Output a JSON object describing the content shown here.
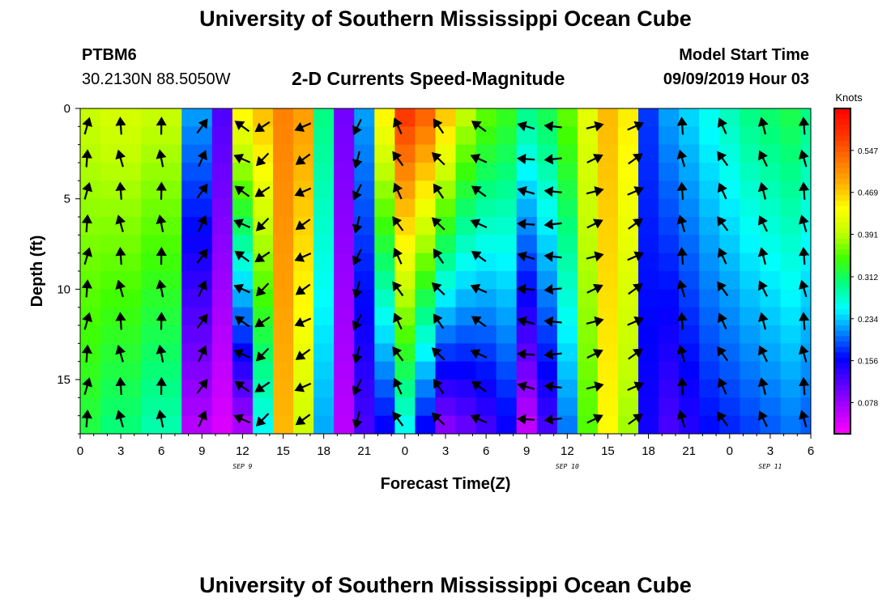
{
  "page": {
    "title_top": "University of Southern Mississippi Ocean Cube",
    "title_bottom": "University of Southern Mississippi Ocean Cube",
    "station_id": "PTBM6",
    "station_coords": "30.2130N 88.5050W",
    "subtitle": "2-D Currents Speed-Magnitude",
    "model_start_label": "Model Start Time",
    "model_start_value": "09/09/2019 Hour 03"
  },
  "chart_data": {
    "type": "heatmap",
    "title": "2-D Currents Speed-Magnitude",
    "xlabel": "Forecast Time(Z)",
    "ylabel": "Depth (ft)",
    "x_tick_labels": [
      "0",
      "3",
      "6",
      "9",
      "12",
      "15",
      "18",
      "21",
      "0",
      "3",
      "6",
      "9",
      "12",
      "15",
      "18",
      "21",
      "0",
      "3",
      "6"
    ],
    "x_range_hours": [
      0,
      54
    ],
    "date_labels": [
      {
        "text": "SEP 9",
        "hour": 12
      },
      {
        "text": "SEP 10",
        "hour": 36
      },
      {
        "text": "SEP 11",
        "hour": 51
      }
    ],
    "y_ticks": [
      0,
      5,
      10,
      15
    ],
    "ylim": [
      0,
      18
    ],
    "y_inverted": true,
    "colorbar": {
      "label": "Knots",
      "tick_labels": [
        "0.547",
        "0.469",
        "0.391",
        "0.312",
        "0.234",
        "0.156",
        "0.078"
      ],
      "tick_values": [
        0.547,
        0.469,
        0.391,
        0.312,
        0.234,
        0.156,
        0.078
      ],
      "range": [
        0.02,
        0.625
      ],
      "colors": [
        "#ff00ff",
        "#b000ff",
        "#5a00ff",
        "#0000ff",
        "#0080ff",
        "#00ffff",
        "#00ff80",
        "#40ff00",
        "#c0ff00",
        "#ffff00",
        "#ffb000",
        "#ff7000",
        "#ff3000",
        "#ff0000"
      ]
    },
    "depths_ft": [
      0,
      1,
      2,
      3,
      4,
      5,
      6,
      7,
      8,
      9,
      10,
      11,
      12,
      13,
      14,
      15,
      16,
      17,
      18
    ],
    "columns": [
      {
        "hour": 0,
        "surface": 0.4,
        "bottom": 0.32
      },
      {
        "hour": 3,
        "surface": 0.41,
        "bottom": 0.3
      },
      {
        "hour": 6,
        "surface": 0.4,
        "bottom": 0.28
      },
      {
        "hour": 9,
        "surface": 0.22,
        "bottom": 0.06
      },
      {
        "hour": 10.5,
        "surface": 0.12,
        "bottom": 0.04
      },
      {
        "hour": 12,
        "surface": 0.45,
        "bottom": 0.06
      },
      {
        "hour": 13.5,
        "surface": 0.48,
        "bottom": 0.25
      },
      {
        "hour": 15,
        "surface": 0.52,
        "bottom": 0.48
      },
      {
        "hour": 16.5,
        "surface": 0.5,
        "bottom": 0.4
      },
      {
        "hour": 18,
        "surface": 0.3,
        "bottom": 0.22
      },
      {
        "hour": 19.5,
        "surface": 0.1,
        "bottom": 0.06
      },
      {
        "hour": 21,
        "surface": 0.22,
        "bottom": 0.12
      },
      {
        "hour": 22.5,
        "surface": 0.45,
        "bottom": 0.15
      },
      {
        "hour": 24,
        "surface": 0.58,
        "bottom": 0.25
      },
      {
        "hour": 25.5,
        "surface": 0.55,
        "bottom": 0.15
      },
      {
        "hour": 27,
        "surface": 0.48,
        "bottom": 0.08
      },
      {
        "hour": 28.5,
        "surface": 0.4,
        "bottom": 0.1
      },
      {
        "hour": 30,
        "surface": 0.36,
        "bottom": 0.12
      },
      {
        "hour": 31.5,
        "surface": 0.34,
        "bottom": 0.15
      },
      {
        "hour": 33,
        "surface": 0.3,
        "bottom": 0.05
      },
      {
        "hour": 34.5,
        "surface": 0.32,
        "bottom": 0.12
      },
      {
        "hour": 36,
        "surface": 0.36,
        "bottom": 0.2
      },
      {
        "hour": 37.5,
        "surface": 0.42,
        "bottom": 0.35
      },
      {
        "hour": 39,
        "surface": 0.48,
        "bottom": 0.44
      },
      {
        "hour": 40.5,
        "surface": 0.45,
        "bottom": 0.38
      },
      {
        "hour": 42,
        "surface": 0.18,
        "bottom": 0.15
      },
      {
        "hour": 43.5,
        "surface": 0.22,
        "bottom": 0.12
      },
      {
        "hour": 45,
        "surface": 0.24,
        "bottom": 0.14
      },
      {
        "hour": 46.5,
        "surface": 0.26,
        "bottom": 0.16
      },
      {
        "hour": 48,
        "surface": 0.28,
        "bottom": 0.17
      },
      {
        "hour": 49.5,
        "surface": 0.3,
        "bottom": 0.18
      },
      {
        "hour": 51,
        "surface": 0.31,
        "bottom": 0.19
      },
      {
        "hour": 52.5,
        "surface": 0.32,
        "bottom": 0.2
      },
      {
        "hour": 54,
        "surface": 0.3,
        "bottom": 0.19
      }
    ],
    "arrow_columns": [
      {
        "hour": 0.5,
        "dir_deg": 80
      },
      {
        "hour": 3,
        "dir_deg": 100
      },
      {
        "hour": 6,
        "dir_deg": 95
      },
      {
        "hour": 9,
        "dir_deg": 60
      },
      {
        "hour": 12,
        "dir_deg": 150
      },
      {
        "hour": 13.5,
        "dir_deg": 220
      },
      {
        "hour": 16.5,
        "dir_deg": 210
      },
      {
        "hour": 20.5,
        "dir_deg": 250
      },
      {
        "hour": 23.5,
        "dir_deg": 120
      },
      {
        "hour": 26.5,
        "dir_deg": 130
      },
      {
        "hour": 29.5,
        "dir_deg": 150
      },
      {
        "hour": 33,
        "dir_deg": 170
      },
      {
        "hour": 35,
        "dir_deg": 180
      },
      {
        "hour": 38,
        "dir_deg": 20
      },
      {
        "hour": 41,
        "dir_deg": 30
      },
      {
        "hour": 44.5,
        "dir_deg": 100
      },
      {
        "hour": 47.5,
        "dir_deg": 120
      },
      {
        "hour": 50.5,
        "dir_deg": 110
      },
      {
        "hour": 53.5,
        "dir_deg": 100
      }
    ]
  }
}
